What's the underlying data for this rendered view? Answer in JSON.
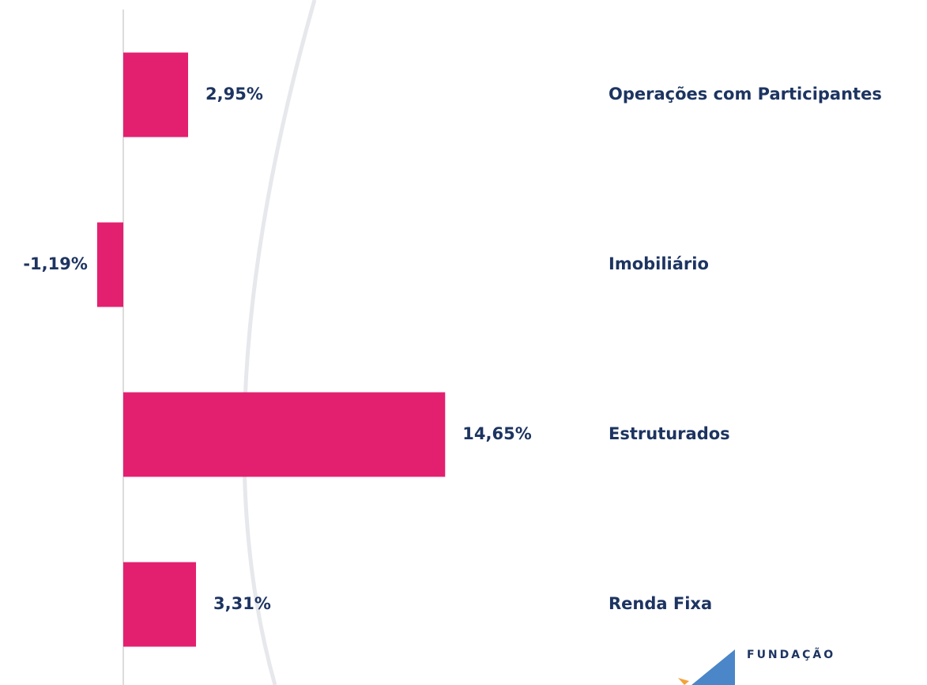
{
  "chart_data": {
    "type": "bar",
    "orientation": "horizontal",
    "categories": [
      "Operações com Participantes",
      "Imobiliário",
      "Estruturados",
      "Renda Fixa"
    ],
    "values": [
      2.95,
      -1.19,
      14.65,
      3.31
    ],
    "value_labels": [
      "2,95%",
      "-1,19%",
      "14,65%",
      "3,31%"
    ],
    "color": "#e3206f",
    "xlim": [
      -5,
      35
    ]
  },
  "logo_text": "FUNDAÇÃO"
}
